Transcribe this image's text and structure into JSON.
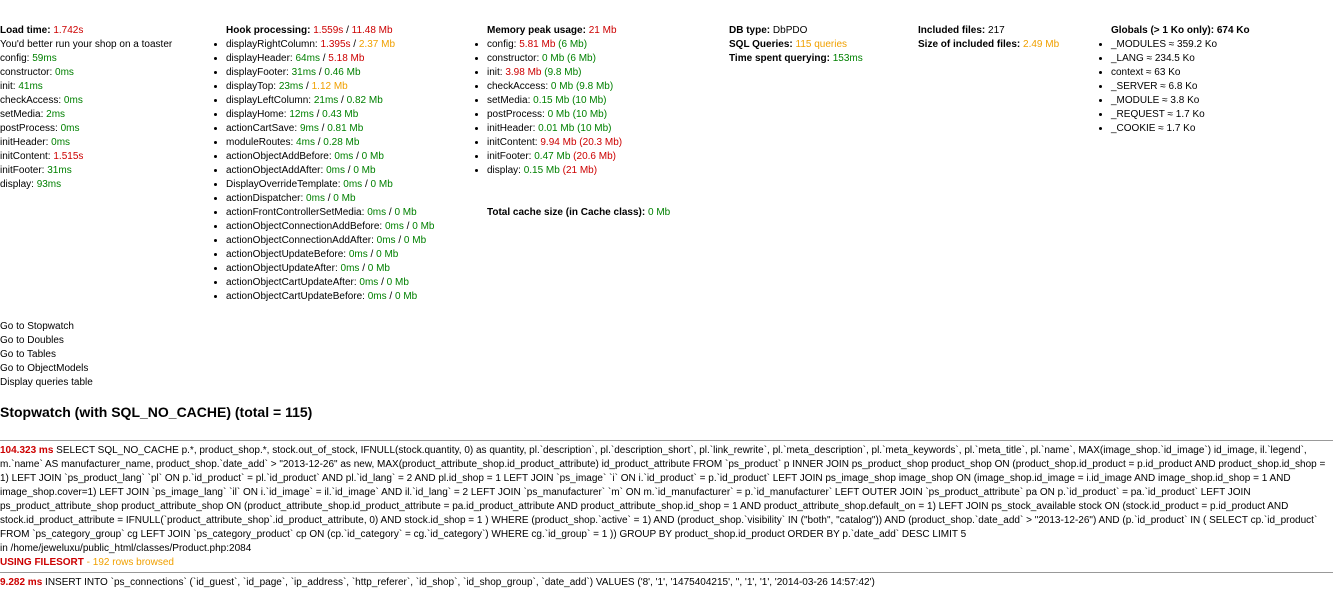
{
  "load": {
    "title": "Load time:",
    "total": "1.742s",
    "message": "You'd better run your shop on a toaster",
    "items": [
      {
        "label": "config:",
        "value": "59ms"
      },
      {
        "label": "constructor:",
        "value": "0ms"
      },
      {
        "label": "init:",
        "value": "41ms"
      },
      {
        "label": "checkAccess:",
        "value": "0ms"
      },
      {
        "label": "setMedia:",
        "value": "2ms"
      },
      {
        "label": "postProcess:",
        "value": "0ms"
      },
      {
        "label": "initHeader:",
        "value": "0ms"
      },
      {
        "label": "initContent:",
        "value": "1.515s"
      },
      {
        "label": "initFooter:",
        "value": "31ms"
      },
      {
        "label": "display:",
        "value": "93ms"
      }
    ]
  },
  "hooks": {
    "title": "Hook processing:",
    "time": "1.559s",
    "sep": "/",
    "mem": "11.48 Mb",
    "items": [
      {
        "name": "displayRightColumn:",
        "time": "1.395s",
        "mem": "2.37 Mb"
      },
      {
        "name": "displayHeader:",
        "time": "64ms",
        "mem": "5.18 Mb"
      },
      {
        "name": "displayFooter:",
        "time": "31ms",
        "mem": "0.46 Mb"
      },
      {
        "name": "displayTop:",
        "time": "23ms",
        "mem": "1.12 Mb"
      },
      {
        "name": "displayLeftColumn:",
        "time": "21ms",
        "mem": "0.82 Mb"
      },
      {
        "name": "displayHome:",
        "time": "12ms",
        "mem": "0.43 Mb"
      },
      {
        "name": "actionCartSave:",
        "time": "9ms",
        "mem": "0.81 Mb"
      },
      {
        "name": "moduleRoutes:",
        "time": "4ms",
        "mem": "0.28 Mb"
      },
      {
        "name": "actionObjectAddBefore:",
        "time": "0ms",
        "mem": "0 Mb"
      },
      {
        "name": "actionObjectAddAfter:",
        "time": "0ms",
        "mem": "0 Mb"
      },
      {
        "name": "DisplayOverrideTemplate:",
        "time": "0ms",
        "mem": "0 Mb"
      },
      {
        "name": "actionDispatcher:",
        "time": "0ms",
        "mem": "0 Mb"
      },
      {
        "name": "actionFrontControllerSetMedia:",
        "time": "0ms",
        "mem": "0 Mb"
      },
      {
        "name": "actionObjectConnectionAddBefore:",
        "time": "0ms",
        "mem": "0 Mb"
      },
      {
        "name": "actionObjectConnectionAddAfter:",
        "time": "0ms",
        "mem": "0 Mb"
      },
      {
        "name": "actionObjectUpdateBefore:",
        "time": "0ms",
        "mem": "0 Mb"
      },
      {
        "name": "actionObjectUpdateAfter:",
        "time": "0ms",
        "mem": "0 Mb"
      },
      {
        "name": "actionObjectCartUpdateAfter:",
        "time": "0ms",
        "mem": "0 Mb"
      },
      {
        "name": "actionObjectCartUpdateBefore:",
        "time": "0ms",
        "mem": "0 Mb"
      }
    ]
  },
  "memory": {
    "title": "Memory peak usage:",
    "total": "21 Mb",
    "items": [
      {
        "label": "config:",
        "value": "5.81 Mb",
        "peak": "(6 Mb)"
      },
      {
        "label": "constructor:",
        "value": "0 Mb",
        "peak": "(6 Mb)"
      },
      {
        "label": "init:",
        "value": "3.98 Mb",
        "peak": "(9.8 Mb)"
      },
      {
        "label": "checkAccess:",
        "value": "0 Mb",
        "peak": "(9.8 Mb)"
      },
      {
        "label": "setMedia:",
        "value": "0.15 Mb",
        "peak": "(10 Mb)"
      },
      {
        "label": "postProcess:",
        "value": "0 Mb",
        "peak": "(10 Mb)"
      },
      {
        "label": "initHeader:",
        "value": "0.01 Mb",
        "peak": "(10 Mb)"
      },
      {
        "label": "initContent:",
        "value": "9.94 Mb",
        "peak": "(20.3 Mb)"
      },
      {
        "label": "initFooter:",
        "value": "0.47 Mb",
        "peak": "(20.6 Mb)"
      },
      {
        "label": "display:",
        "value": "0.15 Mb",
        "peak": "(21 Mb)"
      }
    ],
    "cache_label": "Total cache size (in Cache class):",
    "cache_value": "0 Mb"
  },
  "db": {
    "type_label": "DB type:",
    "type_value": "DbPDO",
    "queries_label": "SQL Queries:",
    "queries_value": "115 queries",
    "time_label": "Time spent querying:",
    "time_value": "153ms"
  },
  "files": {
    "included_label": "Included files:",
    "included_value": "217",
    "size_label": "Size of included files:",
    "size_value": "2.49 Mb"
  },
  "globals": {
    "title": "Globals (> 1 Ko only): 674 Ko",
    "items": [
      "_MODULES ≈ 359.2 Ko",
      "_LANG ≈ 234.5 Ko",
      "context ≈ 63 Ko",
      "_SERVER ≈ 6.8 Ko",
      "_MODULE ≈ 3.8 Ko",
      "_REQUEST ≈ 1.7 Ko",
      "_COOKIE ≈ 1.7 Ko"
    ]
  },
  "links": [
    "Go to Stopwatch",
    "Go to Doubles",
    "Go to Tables",
    "Go to ObjectModels",
    "Display queries table"
  ],
  "stopwatch_title": "Stopwatch (with SQL_NO_CACHE) (total = 115)",
  "queries": [
    {
      "time": "104.323 ms",
      "sql": " SELECT SQL_NO_CACHE p.*, product_shop.*, stock.out_of_stock, IFNULL(stock.quantity, 0) as quantity, pl.`description`, pl.`description_short`, pl.`link_rewrite`, pl.`meta_description`, pl.`meta_keywords`, pl.`meta_title`, pl.`name`, MAX(image_shop.`id_image`) id_image, il.`legend`, m.`name` AS manufacturer_name, product_shop.`date_add` > \"2013-12-26\" as new, MAX(product_attribute_shop.id_product_attribute) id_product_attribute FROM `ps_product` p INNER JOIN ps_product_shop product_shop ON (product_shop.id_product = p.id_product AND product_shop.id_shop = 1) LEFT JOIN `ps_product_lang` `pl` ON p.`id_product` = pl.`id_product` AND pl.`id_lang` = 2 AND pl.id_shop = 1 LEFT JOIN `ps_image` `i` ON i.`id_product` = p.`id_product` LEFT JOIN ps_image_shop image_shop ON (image_shop.id_image = i.id_image AND image_shop.id_shop = 1 AND image_shop.cover=1) LEFT JOIN `ps_image_lang` `il` ON i.`id_image` = il.`id_image` AND il.`id_lang` = 2 LEFT JOIN `ps_manufacturer` `m` ON m.`id_manufacturer` = p.`id_manufacturer` LEFT OUTER JOIN `ps_product_attribute` pa ON p.`id_product` = pa.`id_product` LEFT JOIN ps_product_attribute_shop product_attribute_shop ON (product_attribute_shop.id_product_attribute = pa.id_product_attribute AND product_attribute_shop.id_shop = 1 AND product_attribute_shop.default_on = 1) LEFT JOIN ps_stock_available stock ON (stock.id_product = p.id_product AND stock.id_product_attribute = IFNULL(`product_attribute_shop`.id_product_attribute, 0) AND stock.id_shop = 1 ) WHERE (product_shop.`active` = 1) AND (product_shop.`visibility` IN (\"both\", \"catalog\")) AND (product_shop.`date_add` > \"2013-12-26\") AND (p.`id_product` IN ( SELECT cp.`id_product` FROM `ps_category_group` cg LEFT JOIN `ps_category_product` cp ON (cp.`id_category` = cg.`id_category`) WHERE cg.`id_group` = 1 )) GROUP BY product_shop.id_product ORDER BY p.`date_add` DESC LIMIT 5",
      "file": "in /home/jeweluxu/public_html/classes/Product.php:2084",
      "flag": "USING FILESORT",
      "rows": " - 192 rows browsed"
    },
    {
      "time": "9.282 ms",
      "sql": " INSERT INTO `ps_connections` (`id_guest`, `id_page`, `ip_address`, `http_referer`, `id_shop`, `id_shop_group`, `date_add`) VALUES ('8', '1', '1475404215', '', '1', '1', '2014-03-26 14:57:42')"
    }
  ],
  "colors": {
    "green": "#008000",
    "red": "#cc0000",
    "orange": "#f0a000"
  }
}
